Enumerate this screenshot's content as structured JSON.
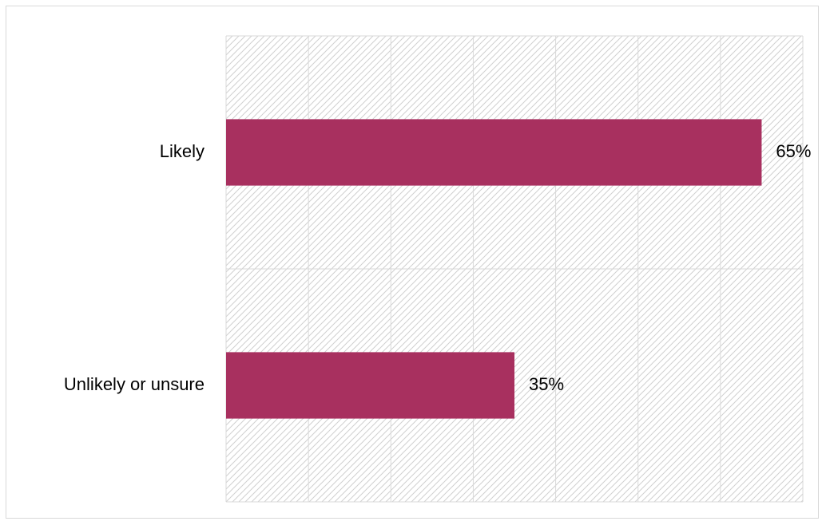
{
  "chart_data": {
    "type": "bar",
    "orientation": "horizontal",
    "categories": [
      "Likely",
      "Unlikely or unsure"
    ],
    "values": [
      65,
      35
    ],
    "value_labels": [
      "65%",
      "35%"
    ],
    "xlim": [
      0,
      70
    ],
    "x_major_step": 10,
    "grid": true,
    "legend": "none",
    "bar_color": "#A8305F",
    "grid_color": "#D9D9D9",
    "hatch_color": "#D0D0D0"
  }
}
